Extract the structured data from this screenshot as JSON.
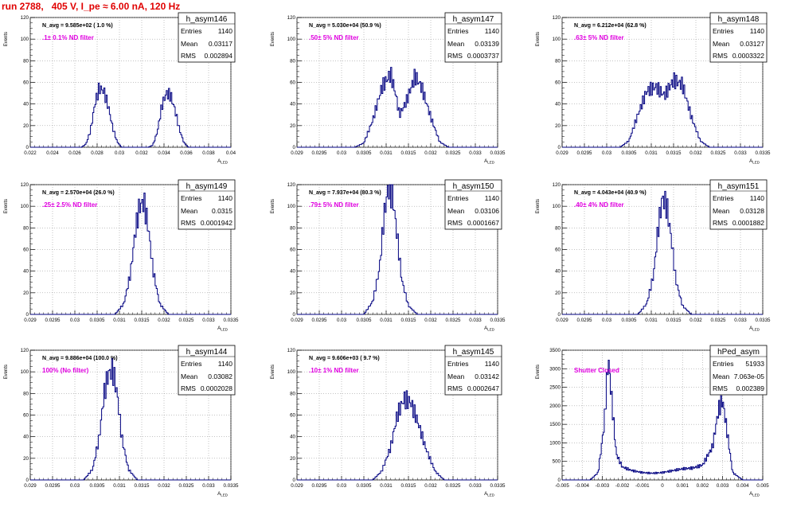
{
  "run_title": "run 2788,   405 V, I_pe ≈ 6.00 nA, 120 Hz",
  "colors": {
    "title": "#e00000",
    "line": "#000080",
    "annotation": "#e000e0",
    "grid": "#888888"
  },
  "chart_data": [
    {
      "type": "bar",
      "hist_name": "h_asym146",
      "stats": {
        "entries": "1140",
        "mean": "0.03117",
        "rms": "0.002894"
      },
      "navg": "N_avg = 9.585e+02 ( 1.0 %)",
      "annotation": ".1± 0.1% ND filter",
      "xlabel": "A_LED",
      "ylabel": "Events",
      "xlim": [
        0.022,
        0.04
      ],
      "ylim": [
        0,
        120
      ],
      "xticks": [
        "0.022",
        "0.024",
        "0.026",
        "0.028",
        "0.03",
        "0.032",
        "0.034",
        "0.036",
        "0.038",
        "0.04"
      ],
      "yticks": [
        "0",
        "20",
        "40",
        "60",
        "80",
        "100",
        "120"
      ],
      "bin_lo": 0.022,
      "bin_hi": 0.04,
      "nbins": 180,
      "bins": {
        "x": [
          0.0266,
          0.027,
          0.0274,
          0.0278,
          0.0282,
          0.0286,
          0.029,
          0.0294,
          0.0298,
          0.0302,
          0.0326,
          0.033,
          0.0334,
          0.0338,
          0.0342,
          0.0346,
          0.035,
          0.0354,
          0.0358,
          0.0362
        ],
        "y": [
          0,
          3,
          15,
          40,
          55,
          52,
          38,
          18,
          5,
          0,
          0,
          2,
          14,
          38,
          50,
          48,
          34,
          16,
          4,
          0
        ]
      }
    },
    {
      "type": "bar",
      "hist_name": "h_asym147",
      "stats": {
        "entries": "1140",
        "mean": "0.03139",
        "rms": "0.0003737"
      },
      "navg": "N_avg = 5.030e+04 (50.9 %)",
      "annotation": ".50± 5% ND filter",
      "xlabel": "A_LED",
      "ylabel": "Events",
      "xlim": [
        0.029,
        0.0335
      ],
      "ylim": [
        0,
        120
      ],
      "xticks": [
        "0.029",
        "0.0295",
        "0.03",
        "0.0305",
        "0.031",
        "0.0315",
        "0.032",
        "0.0325",
        "0.033",
        "0.0335"
      ],
      "yticks": [
        "0",
        "20",
        "40",
        "60",
        "80",
        "100",
        "120"
      ],
      "bin_lo": 0.029,
      "bin_hi": 0.0335,
      "nbins": 180,
      "bins": {
        "x": [
          0.0303,
          0.0305,
          0.0307,
          0.0309,
          0.0311,
          0.0312,
          0.0313,
          0.03145,
          0.03165,
          0.0318,
          0.032,
          0.0322,
          0.0324
        ],
        "y": [
          0,
          4,
          25,
          55,
          68,
          52,
          30,
          42,
          66,
          55,
          28,
          5,
          0
        ]
      }
    },
    {
      "type": "bar",
      "hist_name": "h_asym148",
      "stats": {
        "entries": "1140",
        "mean": "0.03127",
        "rms": "0.0003322"
      },
      "navg": "N_avg = 6.212e+04 (62.8 %)",
      "annotation": ".63± 5% ND filter",
      "xlabel": "A_LED",
      "ylabel": "Events",
      "xlim": [
        0.029,
        0.0335
      ],
      "ylim": [
        0,
        120
      ],
      "xticks": [
        "0.029",
        "0.0295",
        "0.03",
        "0.0305",
        "0.031",
        "0.0315",
        "0.032",
        "0.0325",
        "0.033",
        "0.0335"
      ],
      "yticks": [
        "0",
        "20",
        "40",
        "60",
        "80",
        "100",
        "120"
      ],
      "bin_lo": 0.029,
      "bin_hi": 0.0335,
      "nbins": 180,
      "bins": {
        "x": [
          0.0303,
          0.0305,
          0.0307,
          0.0309,
          0.0311,
          0.0313,
          0.0315,
          0.0317,
          0.0319,
          0.0321,
          0.0323
        ],
        "y": [
          0,
          6,
          30,
          52,
          56,
          48,
          62,
          58,
          28,
          6,
          0
        ]
      }
    },
    {
      "type": "bar",
      "hist_name": "h_asym149",
      "stats": {
        "entries": "1140",
        "mean": "0.0315",
        "rms": "0.0001942"
      },
      "navg": "N_avg = 2.570e+04 (26.0 %)",
      "annotation": ".25± 2.5% ND filter",
      "xlabel": "A_LED",
      "ylabel": "Events",
      "xlim": [
        0.029,
        0.0335
      ],
      "ylim": [
        0,
        120
      ],
      "xticks": [
        "0.029",
        "0.0295",
        "0.03",
        "0.0305",
        "0.031",
        "0.0315",
        "0.032",
        "0.0325",
        "0.033",
        "0.0335"
      ],
      "yticks": [
        "0",
        "20",
        "40",
        "60",
        "80",
        "100",
        "120"
      ],
      "bin_lo": 0.029,
      "bin_hi": 0.0335,
      "nbins": 180,
      "bins": {
        "x": [
          0.0309,
          0.0311,
          0.03125,
          0.03135,
          0.03145,
          0.03155,
          0.03165,
          0.03175,
          0.0319,
          0.0321
        ],
        "y": [
          0,
          10,
          38,
          75,
          100,
          104,
          80,
          42,
          10,
          0
        ]
      }
    },
    {
      "type": "bar",
      "hist_name": "h_asym150",
      "stats": {
        "entries": "1140",
        "mean": "0.03106",
        "rms": "0.0001667"
      },
      "navg": "N_avg = 7.937e+04 (80.3 %)",
      "annotation": ".79± 5% ND filter",
      "xlabel": "A_LED",
      "ylabel": "Events",
      "xlim": [
        0.029,
        0.0335
      ],
      "ylim": [
        0,
        120
      ],
      "xticks": [
        "0.029",
        "0.0295",
        "0.03",
        "0.0305",
        "0.031",
        "0.0315",
        "0.032",
        "0.0325",
        "0.033",
        "0.0335"
      ],
      "yticks": [
        "0",
        "20",
        "40",
        "60",
        "80",
        "100",
        "120"
      ],
      "bin_lo": 0.029,
      "bin_hi": 0.0335,
      "nbins": 180,
      "bins": {
        "x": [
          0.0305,
          0.0307,
          0.03085,
          0.03095,
          0.03105,
          0.03115,
          0.03125,
          0.03135,
          0.0315,
          0.0317
        ],
        "y": [
          0,
          12,
          42,
          90,
          118,
          108,
          72,
          32,
          8,
          0
        ]
      }
    },
    {
      "type": "bar",
      "hist_name": "h_asym151",
      "stats": {
        "entries": "1140",
        "mean": "0.03128",
        "rms": "0.0001882"
      },
      "navg": "N_avg = 4.043e+04 (40.9 %)",
      "annotation": ".40± 4% ND filter",
      "xlabel": "A_LED",
      "ylabel": "Events",
      "xlim": [
        0.029,
        0.0335
      ],
      "ylim": [
        0,
        120
      ],
      "xticks": [
        "0.029",
        "0.0295",
        "0.03",
        "0.0305",
        "0.031",
        "0.0315",
        "0.032",
        "0.0325",
        "0.033",
        "0.0335"
      ],
      "yticks": [
        "0",
        "20",
        "40",
        "60",
        "80",
        "100",
        "120"
      ],
      "bin_lo": 0.029,
      "bin_hi": 0.0335,
      "nbins": 180,
      "bins": {
        "x": [
          0.0307,
          0.0309,
          0.03105,
          0.03115,
          0.03125,
          0.03135,
          0.03145,
          0.03155,
          0.0317,
          0.0319
        ],
        "y": [
          0,
          10,
          36,
          78,
          108,
          100,
          70,
          32,
          8,
          0
        ]
      }
    },
    {
      "type": "bar",
      "hist_name": "h_asym144",
      "stats": {
        "entries": "1140",
        "mean": "0.03082",
        "rms": "0.0002028"
      },
      "navg": "N_avg = 9.886e+04 (100.0 %)",
      "annotation": "100% (No filter)",
      "xlabel": "A_LED",
      "ylabel": "Events",
      "xlim": [
        0.029,
        0.0335
      ],
      "ylim": [
        0,
        120
      ],
      "xticks": [
        "0.029",
        "0.0295",
        "0.03",
        "0.0305",
        "0.031",
        "0.0315",
        "0.032",
        "0.0325",
        "0.033",
        "0.0335"
      ],
      "yticks": [
        "0",
        "20",
        "40",
        "60",
        "80",
        "100",
        "120"
      ],
      "bin_lo": 0.029,
      "bin_hi": 0.0335,
      "nbins": 180,
      "bins": {
        "x": [
          0.0302,
          0.0304,
          0.03055,
          0.03065,
          0.03075,
          0.03085,
          0.03095,
          0.03105,
          0.0312,
          0.0314
        ],
        "y": [
          0,
          10,
          40,
          78,
          98,
          102,
          80,
          40,
          10,
          0
        ]
      }
    },
    {
      "type": "bar",
      "hist_name": "h_asym145",
      "stats": {
        "entries": "1140",
        "mean": "0.03142",
        "rms": "0.0002647"
      },
      "navg": "N_avg = 9.606e+03 ( 9.7 %)",
      "annotation": ".10± 1% ND filter",
      "xlabel": "A_LED",
      "ylabel": "Events",
      "xlim": [
        0.029,
        0.0335
      ],
      "ylim": [
        0,
        120
      ],
      "xticks": [
        "0.029",
        "0.0295",
        "0.03",
        "0.0305",
        "0.031",
        "0.0315",
        "0.032",
        "0.0325",
        "0.033",
        "0.0335"
      ],
      "yticks": [
        "0",
        "20",
        "40",
        "60",
        "80",
        "100",
        "120"
      ],
      "bin_lo": 0.029,
      "bin_hi": 0.0335,
      "nbins": 180,
      "bins": {
        "x": [
          0.0307,
          0.0309,
          0.0311,
          0.03125,
          0.0314,
          0.03155,
          0.0317,
          0.0319,
          0.0321,
          0.0323
        ],
        "y": [
          0,
          8,
          30,
          60,
          75,
          72,
          55,
          28,
          8,
          0
        ]
      }
    },
    {
      "type": "bar",
      "hist_name": "hPed_asym",
      "stats": {
        "entries": "51933",
        "mean": "7.063e-05",
        "rms": "0.002389"
      },
      "navg": "",
      "annotation": "Shutter Closed",
      "xlabel": "A_LED",
      "ylabel": "Events",
      "xlim": [
        -0.005,
        0.005
      ],
      "ylim": [
        0,
        3500
      ],
      "xticks": [
        "-0.005",
        "-0.004",
        "-0.003",
        "-0.002",
        "-0.001",
        "0",
        "0.001",
        "0.002",
        "0.003",
        "0.004",
        "0.005"
      ],
      "yticks": [
        "0",
        "500",
        "1000",
        "1500",
        "2000",
        "2500",
        "3000",
        "3500"
      ],
      "bin_lo": -0.005,
      "bin_hi": 0.005,
      "nbins": 200,
      "bins": {
        "x": [
          -0.0036,
          -0.0032,
          -0.0029,
          -0.0027,
          -0.0025,
          -0.0023,
          -0.002,
          -0.0015,
          -0.001,
          -0.0005,
          0.0,
          0.0005,
          0.001,
          0.0015,
          0.002,
          0.0025,
          0.0028,
          0.003,
          0.0032,
          0.0035,
          0.004
        ],
        "y": [
          0,
          200,
          1500,
          3300,
          2000,
          700,
          350,
          250,
          200,
          180,
          200,
          250,
          300,
          320,
          400,
          900,
          1900,
          2150,
          1400,
          200,
          0
        ]
      }
    }
  ]
}
